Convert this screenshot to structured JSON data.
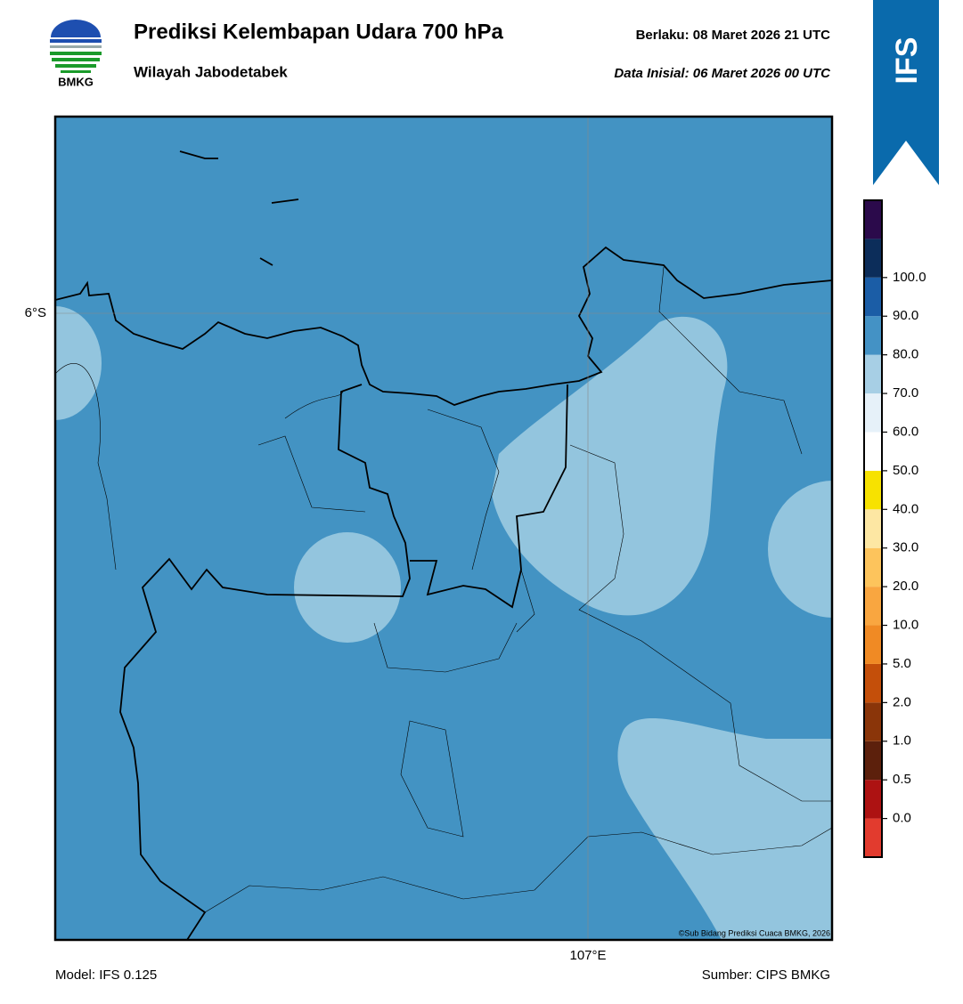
{
  "header": {
    "logo_text": "BMKG",
    "title": "Prediksi Kelembapan Udara 700 hPa",
    "subtitle": "Wilayah Jabodetabek",
    "valid": "Berlaku:  08 Maret 2026 21 UTC",
    "init": "Data Inisial:  06 Maret 2026 00 UTC",
    "badge": "IFS"
  },
  "map": {
    "lat_label": "6°S",
    "lon_label": "107°E",
    "credit": "©Sub Bidang Prediksi Cuaca BMKG, 2026"
  },
  "colorbar": {
    "colors": [
      "#e23b2e",
      "#ad1212",
      "#5c200c",
      "#8a3509",
      "#c44f0a",
      "#f08a24",
      "#f9a640",
      "#fdc45c",
      "#fde7a3",
      "#f7e200",
      "#ffffff",
      "#e6f1f9",
      "#a7cfe5",
      "#4492c5",
      "#1b5da6",
      "#0c2d5a",
      "#2b0a4b"
    ],
    "ticks": [
      {
        "value": 0,
        "label": "0.0"
      },
      {
        "value": 0.5,
        "label": "0.5"
      },
      {
        "value": 1,
        "label": "1.0"
      },
      {
        "value": 2,
        "label": "2.0"
      },
      {
        "value": 5,
        "label": "5.0"
      },
      {
        "value": 10,
        "label": "10.0"
      },
      {
        "value": 20,
        "label": "20.0"
      },
      {
        "value": 30,
        "label": "30.0"
      },
      {
        "value": 40,
        "label": "40.0"
      },
      {
        "value": 50,
        "label": "50.0"
      },
      {
        "value": 60,
        "label": "60.0"
      },
      {
        "value": 70,
        "label": "70.0"
      },
      {
        "value": 80,
        "label": "80.0"
      },
      {
        "value": 90,
        "label": "90.0"
      },
      {
        "value": 100,
        "label": "100.0"
      }
    ]
  },
  "footer": {
    "model": "Model: IFS 0.125",
    "source": "Sumber: CIPS BMKG"
  }
}
